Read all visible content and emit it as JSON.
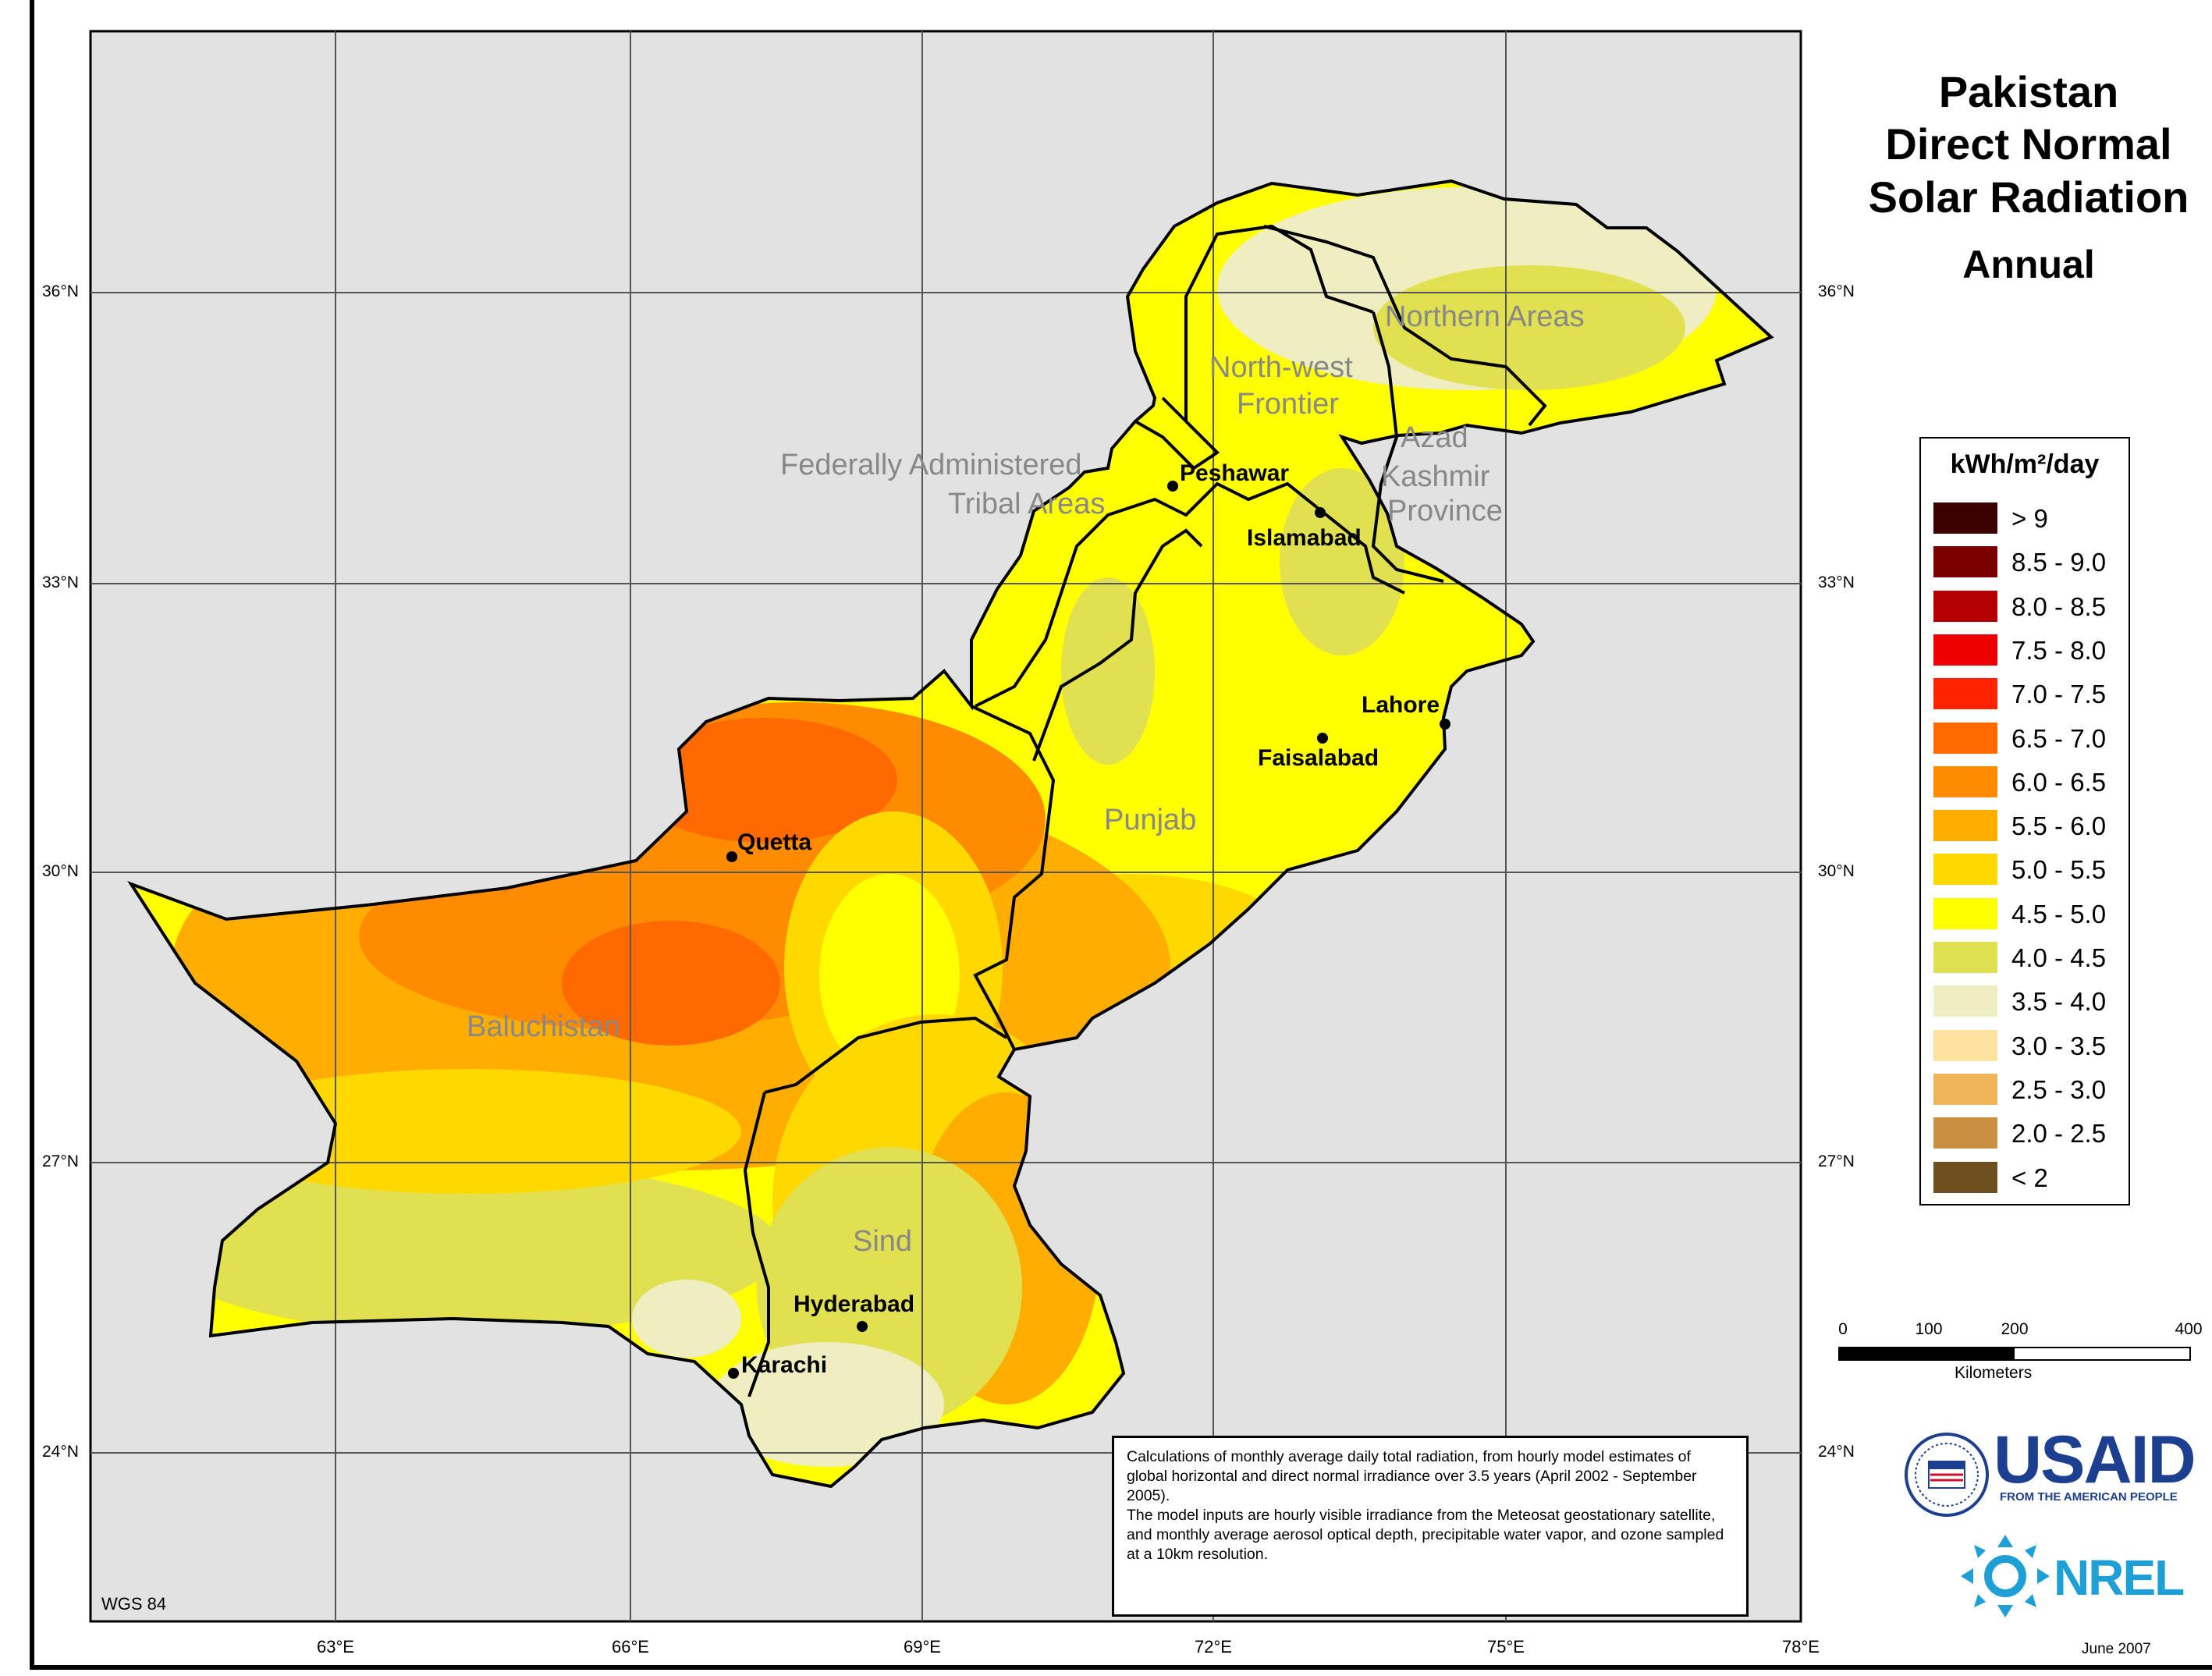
{
  "title": {
    "line1": "Pakistan",
    "line2": "Direct Normal",
    "line3": "Solar Radiation",
    "line4": "Annual"
  },
  "axes": {
    "lat_labels": [
      "36°N",
      "33°N",
      "30°N",
      "27°N",
      "24°N"
    ],
    "lon_labels": [
      "63°E",
      "66°E",
      "69°E",
      "72°E",
      "75°E",
      "78°E"
    ]
  },
  "regions": {
    "northern_areas": "Northern Areas",
    "nwfp_1": "North-west",
    "nwfp_2": "Frontier",
    "fata_1": "Federally Administered",
    "fata_2": "Tribal Areas",
    "azad_1": "Azad",
    "azad_2": "Kashmir",
    "azad_3": "Province",
    "punjab": "Punjab",
    "baluchistan": "Baluchistan",
    "sind": "Sind"
  },
  "cities": {
    "peshawar": "Peshawar",
    "islamabad": "Islamabad",
    "lahore": "Lahore",
    "faisalabad": "Faisalabad",
    "quetta": "Quetta",
    "hyderabad": "Hyderabad",
    "karachi": "Karachi"
  },
  "legend": {
    "title": "kWh/m²/day",
    "items": [
      {
        "label": "> 9",
        "color": "#3d0000"
      },
      {
        "label": "8.5 - 9.0",
        "color": "#7a0000"
      },
      {
        "label": "8.0 - 8.5",
        "color": "#b40000"
      },
      {
        "label": "7.5 - 8.0",
        "color": "#ee0000"
      },
      {
        "label": "7.0 - 7.5",
        "color": "#ff2200"
      },
      {
        "label": "6.5 - 7.0",
        "color": "#ff6a00"
      },
      {
        "label": "6.0 - 6.5",
        "color": "#ff8c00"
      },
      {
        "label": "5.5 - 6.0",
        "color": "#ffae00"
      },
      {
        "label": "5.0 - 5.5",
        "color": "#ffd800"
      },
      {
        "label": "4.5 - 5.0",
        "color": "#ffff00"
      },
      {
        "label": "4.0 - 4.5",
        "color": "#e0e050"
      },
      {
        "label": "3.5 - 4.0",
        "color": "#eeeec0"
      },
      {
        "label": "3.0 - 3.5",
        "color": "#fde2a0"
      },
      {
        "label": "2.5 - 3.0",
        "color": "#f0b45a"
      },
      {
        "label": "2.0 - 2.5",
        "color": "#c89040"
      },
      {
        "label": "< 2",
        "color": "#6e5020"
      }
    ]
  },
  "scalebar": {
    "ticks": [
      "0",
      "100",
      "200",
      "400"
    ],
    "unit": "Kilometers"
  },
  "note": {
    "para1": "Calculations of monthly average daily total radiation, from hourly model estimates of global horizontal and direct normal irradiance over 3.5 years (April 2002 - September 2005).",
    "para2": "The model inputs are hourly visible irradiance from the Meteosat geostationary satellite, and monthly average aerosol optical depth, precipitable water vapor, and ozone sampled at a 10km resolution."
  },
  "datum": "WGS 84",
  "date": "June 2007",
  "logos": {
    "usaid": "USAID",
    "usaid_tagline": "FROM THE AMERICAN PEOPLE",
    "nrel": "NREL"
  }
}
